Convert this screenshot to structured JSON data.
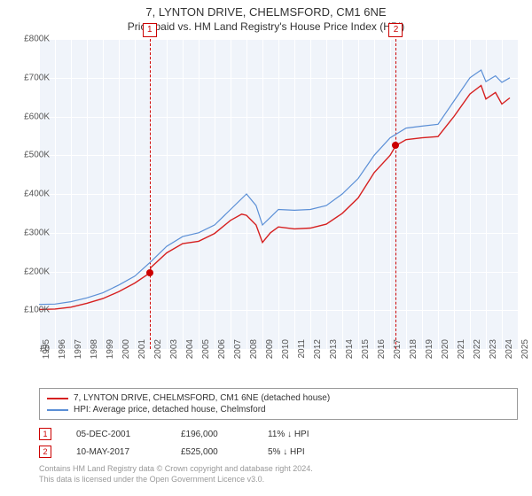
{
  "title": "7, LYNTON DRIVE, CHELMSFORD, CM1 6NE",
  "subtitle": "Price paid vs. HM Land Registry's House Price Index (HPI)",
  "chart": {
    "type": "line",
    "background_color": "#f0f4fa",
    "grid_color": "#ffffff",
    "xlim": [
      1995,
      2025
    ],
    "ylim": [
      0,
      800000
    ],
    "ytick_step": 100000,
    "y_ticks": [
      "£0",
      "£100K",
      "£200K",
      "£300K",
      "£400K",
      "£500K",
      "£600K",
      "£700K",
      "£800K"
    ],
    "x_ticks": [
      "1995",
      "1996",
      "1997",
      "1998",
      "1999",
      "2000",
      "2001",
      "2002",
      "2003",
      "2004",
      "2005",
      "2006",
      "2007",
      "2008",
      "2009",
      "2010",
      "2011",
      "2012",
      "2013",
      "2014",
      "2015",
      "2016",
      "2017",
      "2018",
      "2019",
      "2020",
      "2021",
      "2022",
      "2023",
      "2024",
      "2025"
    ],
    "series": [
      {
        "name": "hpi",
        "label": "HPI: Average price, detached house, Chelmsford",
        "color": "#5b8fd6",
        "line_width": 1.2,
        "data": [
          [
            1995,
            115000
          ],
          [
            1996,
            116000
          ],
          [
            1997,
            122000
          ],
          [
            1998,
            132000
          ],
          [
            1999,
            145000
          ],
          [
            2000,
            165000
          ],
          [
            2001,
            188000
          ],
          [
            2002,
            225000
          ],
          [
            2003,
            265000
          ],
          [
            2004,
            290000
          ],
          [
            2005,
            300000
          ],
          [
            2006,
            320000
          ],
          [
            2007,
            360000
          ],
          [
            2008,
            400000
          ],
          [
            2008.6,
            370000
          ],
          [
            2009,
            320000
          ],
          [
            2009.5,
            340000
          ],
          [
            2010,
            360000
          ],
          [
            2011,
            358000
          ],
          [
            2012,
            360000
          ],
          [
            2013,
            370000
          ],
          [
            2014,
            400000
          ],
          [
            2015,
            440000
          ],
          [
            2016,
            500000
          ],
          [
            2017,
            545000
          ],
          [
            2018,
            570000
          ],
          [
            2019,
            575000
          ],
          [
            2020,
            580000
          ],
          [
            2021,
            640000
          ],
          [
            2022,
            700000
          ],
          [
            2022.7,
            720000
          ],
          [
            2023,
            690000
          ],
          [
            2023.6,
            705000
          ],
          [
            2024,
            688000
          ],
          [
            2024.5,
            700000
          ]
        ]
      },
      {
        "name": "price_paid",
        "label": "7, LYNTON DRIVE, CHELMSFORD, CM1 6NE (detached house)",
        "color": "#d62020",
        "line_width": 1.4,
        "data": [
          [
            1995,
            102000
          ],
          [
            1996,
            103000
          ],
          [
            1997,
            108000
          ],
          [
            1998,
            118000
          ],
          [
            1999,
            130000
          ],
          [
            2000,
            148000
          ],
          [
            2001,
            170000
          ],
          [
            2001.93,
            196000
          ],
          [
            2002,
            210000
          ],
          [
            2003,
            248000
          ],
          [
            2004,
            272000
          ],
          [
            2005,
            278000
          ],
          [
            2006,
            298000
          ],
          [
            2007,
            332000
          ],
          [
            2007.7,
            348000
          ],
          [
            2008,
            345000
          ],
          [
            2008.6,
            320000
          ],
          [
            2009,
            275000
          ],
          [
            2009.5,
            300000
          ],
          [
            2010,
            315000
          ],
          [
            2011,
            310000
          ],
          [
            2012,
            312000
          ],
          [
            2013,
            322000
          ],
          [
            2014,
            350000
          ],
          [
            2015,
            390000
          ],
          [
            2016,
            455000
          ],
          [
            2017,
            500000
          ],
          [
            2017.36,
            525000
          ],
          [
            2018,
            540000
          ],
          [
            2019,
            545000
          ],
          [
            2020,
            548000
          ],
          [
            2021,
            600000
          ],
          [
            2022,
            658000
          ],
          [
            2022.7,
            680000
          ],
          [
            2023,
            645000
          ],
          [
            2023.6,
            662000
          ],
          [
            2024,
            632000
          ],
          [
            2024.5,
            648000
          ]
        ]
      }
    ],
    "sale_markers": [
      {
        "n": "1",
        "x": 2001.93,
        "y": 196000
      },
      {
        "n": "2",
        "x": 2017.36,
        "y": 525000
      }
    ]
  },
  "legend": {
    "items": [
      {
        "color": "#d62020",
        "label": "7, LYNTON DRIVE, CHELMSFORD, CM1 6NE (detached house)"
      },
      {
        "color": "#5b8fd6",
        "label": "HPI: Average price, detached house, Chelmsford"
      }
    ]
  },
  "sales": [
    {
      "n": "1",
      "date": "05-DEC-2001",
      "price": "£196,000",
      "diff": "11% ↓ HPI"
    },
    {
      "n": "2",
      "date": "10-MAY-2017",
      "price": "£525,000",
      "diff": "5% ↓ HPI"
    }
  ],
  "footer_line1": "Contains HM Land Registry data © Crown copyright and database right 2024.",
  "footer_line2": "This data is licensed under the Open Government Licence v3.0."
}
